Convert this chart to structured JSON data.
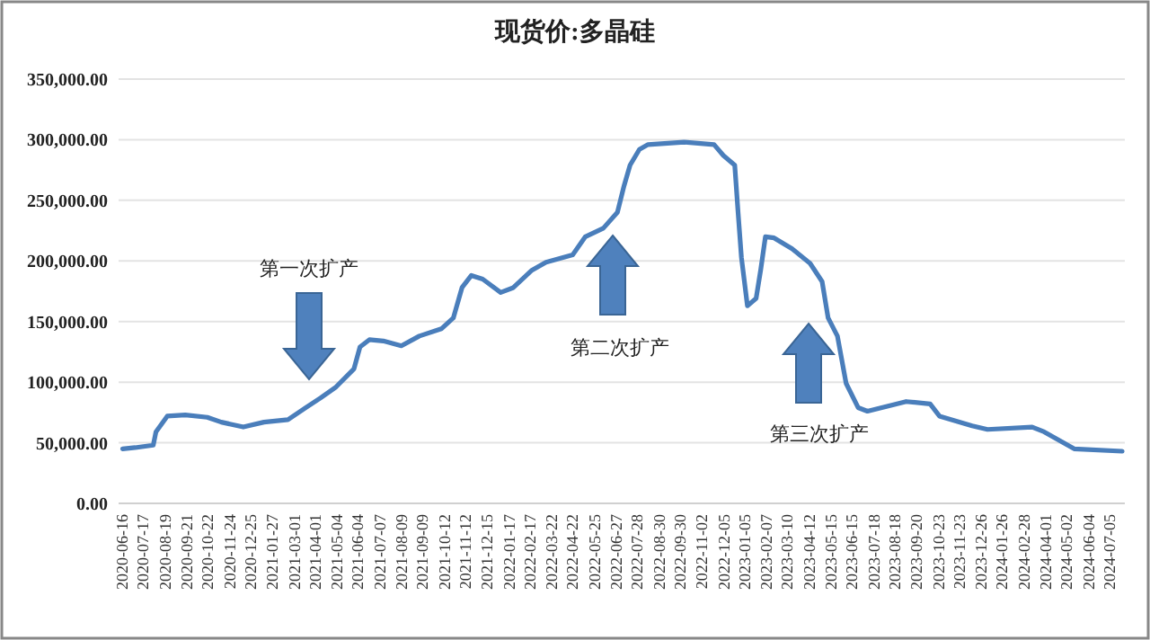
{
  "chart_data": {
    "type": "line",
    "title": "现货价:多晶硅",
    "color": "#4a7ebb",
    "grid": "y",
    "marker": "none",
    "line_style": "solid",
    "x": [
      "2020-06-16",
      "2020-07-05",
      "2020-08-01",
      "2020-08-05",
      "2020-08-22",
      "2020-09-18",
      "2020-10-21",
      "2020-11-11",
      "2020-12-14",
      "2021-01-14",
      "2021-02-19",
      "2021-03-18",
      "2021-04-09",
      "2021-05-02",
      "2021-05-29",
      "2021-06-07",
      "2021-06-21",
      "2021-07-12",
      "2021-08-08",
      "2021-09-04",
      "2021-10-07",
      "2021-10-25",
      "2021-11-07",
      "2021-11-21",
      "2021-12-08",
      "2022-01-04",
      "2022-01-23",
      "2022-02-19",
      "2022-03-13",
      "2022-04-22",
      "2022-05-11",
      "2022-06-07",
      "2022-06-28",
      "2022-07-08",
      "2022-07-17",
      "2022-07-31",
      "2022-08-13",
      "2022-10-06",
      "2022-11-20",
      "2022-12-04",
      "2022-12-21",
      "2022-12-26",
      "2022-12-31",
      "2023-01-09",
      "2023-01-22",
      "2023-01-29",
      "2023-02-05",
      "2023-02-18",
      "2023-03-17",
      "2023-04-13",
      "2023-05-01",
      "2023-05-10",
      "2023-05-24",
      "2023-06-06",
      "2023-06-24",
      "2023-07-08",
      "2023-09-04",
      "2023-10-10",
      "2023-10-24",
      "2023-12-12",
      "2024-01-04",
      "2024-03-11",
      "2024-03-29",
      "2024-05-13",
      "2024-07-24"
    ],
    "values": [
      45000,
      46000,
      48000,
      59000,
      72000,
      73000,
      71000,
      67000,
      63000,
      67000,
      69000,
      79000,
      87000,
      96000,
      111000,
      129000,
      135000,
      134000,
      130000,
      138000,
      144000,
      153000,
      178000,
      188000,
      185000,
      174000,
      178000,
      192000,
      199000,
      205000,
      220000,
      227000,
      240000,
      262000,
      279000,
      292000,
      296000,
      298000,
      296000,
      287000,
      279000,
      240000,
      203000,
      163000,
      169000,
      193000,
      220000,
      219000,
      210000,
      198000,
      183000,
      153000,
      138000,
      99000,
      79000,
      76000,
      84000,
      82000,
      72000,
      64000,
      61000,
      63000,
      59000,
      45000,
      43000
    ],
    "xlim": [
      "2020-06-10",
      "2024-07-28"
    ],
    "xticks": [
      "2020-06-16",
      "2020-07-17",
      "2020-08-19",
      "2020-09-21",
      "2020-10-22",
      "2020-11-24",
      "2020-12-25",
      "2021-01-27",
      "2021-03-01",
      "2021-04-01",
      "2021-05-04",
      "2021-06-04",
      "2021-07-07",
      "2021-08-09",
      "2021-09-09",
      "2021-10-12",
      "2021-11-12",
      "2021-12-15",
      "2022-01-17",
      "2022-02-17",
      "2022-03-22",
      "2022-04-22",
      "2022-05-25",
      "2022-06-27",
      "2022-07-28",
      "2022-08-30",
      "2022-09-30",
      "2022-11-02",
      "2022-12-05",
      "2023-01-05",
      "2023-02-07",
      "2023-03-10",
      "2023-04-12",
      "2023-05-15",
      "2023-06-15",
      "2023-07-18",
      "2023-08-18",
      "2023-09-20",
      "2023-10-23",
      "2023-11-23",
      "2023-12-26",
      "2024-01-26",
      "2024-02-28",
      "2024-04-01",
      "2024-05-02",
      "2024-06-04",
      "2024-07-05"
    ],
    "ylim": [
      0,
      350000
    ],
    "yticks": [
      {
        "value": 0,
        "label": "0.00"
      },
      {
        "value": 50000,
        "label": "50,000.00"
      },
      {
        "value": 100000,
        "label": "100,000.00"
      },
      {
        "value": 150000,
        "label": "150,000.00"
      },
      {
        "value": 200000,
        "label": "200,000.00"
      },
      {
        "value": 250000,
        "label": "250,000.00"
      },
      {
        "value": 300000,
        "label": "300,000.00"
      },
      {
        "value": 350000,
        "label": "350,000.00"
      }
    ],
    "annotations": [
      "第一次扩产",
      "第二次扩产",
      "第三次扩产"
    ]
  }
}
